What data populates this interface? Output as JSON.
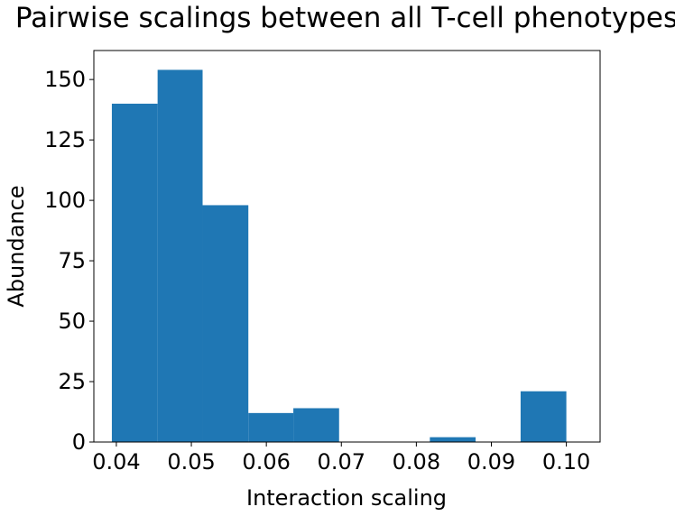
{
  "chart_data": {
    "type": "bar",
    "title": "Pairwise scalings between all T-cell phenotypes",
    "xlabel": "Interaction scaling",
    "ylabel": "Abundance",
    "xlim": [
      0.037,
      0.1045
    ],
    "ylim": [
      0,
      162
    ],
    "xticks": [
      0.04,
      0.05,
      0.06,
      0.07,
      0.08,
      0.09,
      0.1
    ],
    "xtick_labels": [
      "0.04",
      "0.05",
      "0.06",
      "0.07",
      "0.08",
      "0.09",
      "0.10"
    ],
    "yticks": [
      0,
      25,
      50,
      75,
      100,
      125,
      150
    ],
    "ytick_labels": [
      "0",
      "25",
      "50",
      "75",
      "100",
      "125",
      "150"
    ],
    "bin_edges": [
      0.0394,
      0.0455,
      0.0515,
      0.0576,
      0.0636,
      0.0697,
      0.0758,
      0.0818,
      0.0879,
      0.0939,
      0.1
    ],
    "values": [
      140,
      154,
      98,
      12,
      14,
      0,
      0,
      2,
      0,
      21
    ],
    "grid": false,
    "bar_color": "#1f77b4"
  }
}
